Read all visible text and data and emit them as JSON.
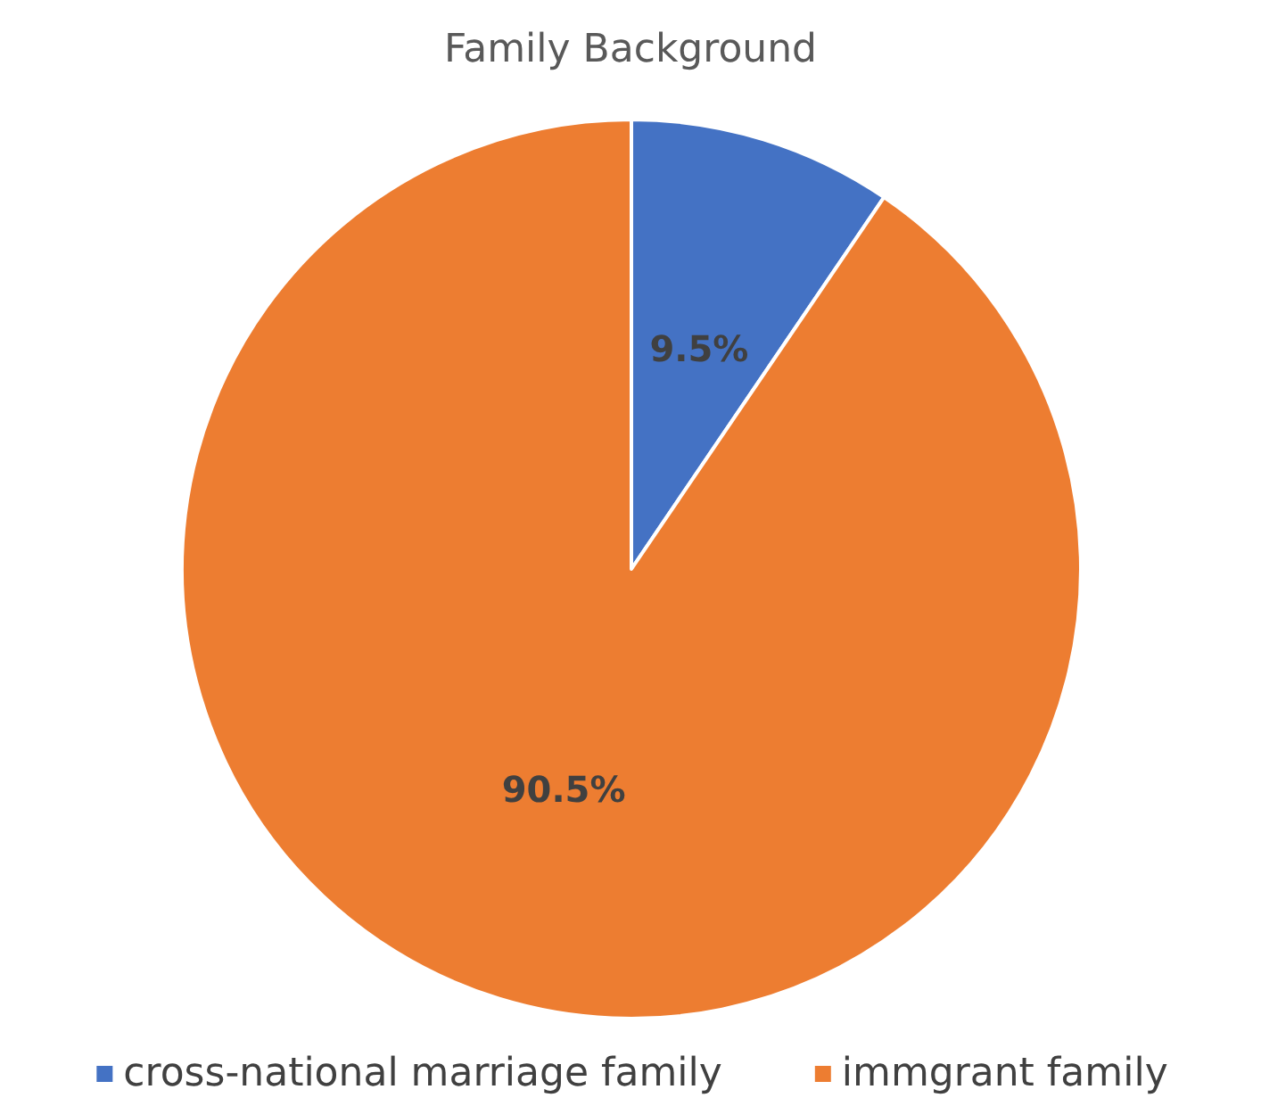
{
  "chart_data": {
    "type": "pie",
    "title": "Family Background",
    "categories": [
      "cross-national marriage family",
      "immgrant family"
    ],
    "values": [
      9.5,
      90.5
    ],
    "value_labels": [
      "9.5%",
      "90.5%"
    ],
    "colors": [
      "#4472c4",
      "#ed7d31"
    ],
    "legend": "bottom"
  }
}
